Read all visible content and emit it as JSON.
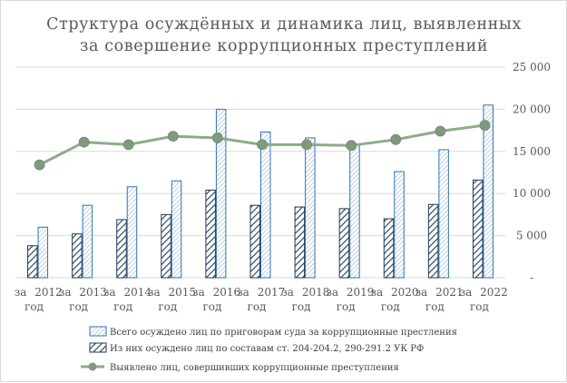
{
  "chart_data": {
    "type": "bar",
    "title": [
      "Структура осуждённых и динамика лиц, выявленных",
      "за совершение коррупционных преступлений"
    ],
    "categories": [
      [
        "за",
        "2012",
        "год"
      ],
      [
        "за",
        "2013",
        "год"
      ],
      [
        "за",
        "2014",
        "год"
      ],
      [
        "за",
        "2015",
        "год"
      ],
      [
        "за",
        "2016",
        "год"
      ],
      [
        "за",
        "2017",
        "год"
      ],
      [
        "за",
        "2018",
        "год"
      ],
      [
        "за",
        "2019",
        "год"
      ],
      [
        "за",
        "2020",
        "год"
      ],
      [
        "за",
        "2021",
        "год"
      ],
      [
        "за",
        "2022",
        "год"
      ]
    ],
    "ylim": [
      0,
      25000
    ],
    "y_ticks": [
      "-",
      "5 000",
      "10 000",
      "15 000",
      "20 000",
      "25 000"
    ],
    "y_axis_side": "right",
    "grid": true,
    "legend_position": "bottom",
    "series": [
      {
        "name": "Всего осуждено лиц по приговорам суда за коррупционные престления",
        "kind": "bar",
        "pattern": "fine-hatch",
        "color": "#2e75b6",
        "values": [
          6000,
          8600,
          10800,
          11500,
          20000,
          17300,
          16600,
          15800,
          12600,
          15200,
          20500
        ]
      },
      {
        "name": "Из них осуждено лиц по составам ст. 204-204.2, 290-291.2 УК РФ",
        "kind": "bar",
        "pattern": "wide-hatch",
        "color": "#1f3b57",
        "values": [
          3800,
          5200,
          6900,
          7500,
          10400,
          8600,
          8400,
          8200,
          7000,
          8700,
          11600
        ]
      },
      {
        "name": "Выявлено лиц, совершивших коррупционные преступления",
        "kind": "line",
        "color": "#8faa8c",
        "marker_color": "#7f9a7c",
        "values": [
          13400,
          16100,
          15800,
          16800,
          16600,
          15800,
          15800,
          15700,
          16400,
          17400,
          18100
        ]
      }
    ]
  }
}
